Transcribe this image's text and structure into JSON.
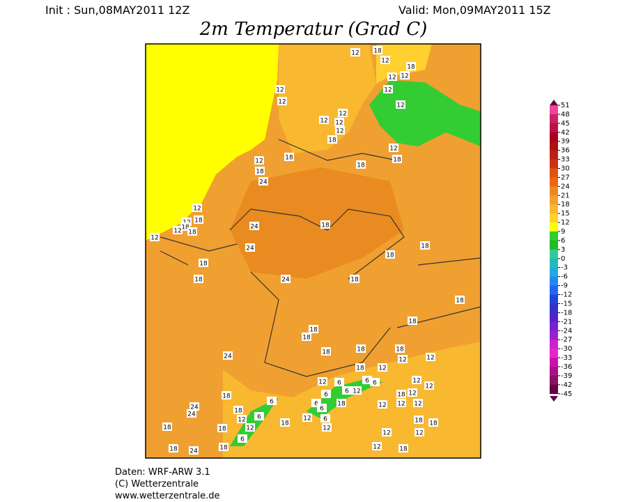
{
  "header": {
    "init": "Init : Sun,08MAY2011 12Z",
    "valid": "Valid: Mon,09MAY2011 15Z",
    "title": "2m Temperatur (Grad C)"
  },
  "colorbar": {
    "ticks": [
      51,
      48,
      45,
      42,
      39,
      36,
      33,
      30,
      27,
      24,
      21,
      18,
      15,
      12,
      9,
      6,
      3,
      0,
      -3,
      -6,
      -9,
      -12,
      -15,
      -18,
      -21,
      -24,
      -27,
      -30,
      -33,
      -36,
      -39,
      -42,
      -45
    ],
    "colors": [
      "#ee4499",
      "#cc2266",
      "#bb1144",
      "#aa0022",
      "#aa1111",
      "#bb2211",
      "#cc3311",
      "#dd5511",
      "#ee6611",
      "#ee8822",
      "#f0a030",
      "#f8b830",
      "#ffd030",
      "#ffff00",
      "#33cc33",
      "#22bb22",
      "#33cc99",
      "#22bbbb",
      "#22aadd",
      "#2288ee",
      "#2266ee",
      "#2244dd",
      "#3333cc",
      "#5522cc",
      "#7722cc",
      "#9922cc",
      "#cc22cc",
      "#ee22cc",
      "#cc11aa",
      "#aa1188",
      "#881166",
      "#660044"
    ]
  },
  "map": {
    "labels": [
      12,
      12,
      12,
      18,
      12,
      18,
      12,
      12,
      12,
      12,
      12,
      12,
      12,
      12,
      18,
      12,
      18,
      18,
      18,
      12,
      18,
      24,
      12,
      18,
      12,
      18,
      12,
      18,
      12,
      24,
      18,
      24,
      18,
      18,
      24,
      18,
      18,
      18,
      18,
      18,
      18,
      18,
      18,
      18,
      18,
      12,
      12,
      12,
      18,
      24,
      18,
      12,
      6,
      6,
      6,
      12,
      12,
      6,
      12,
      6,
      6,
      18,
      18,
      12,
      12,
      12,
      12,
      6,
      6,
      18,
      12,
      12,
      18,
      12,
      6,
      6,
      18,
      18,
      12,
      12,
      24,
      24,
      18,
      18,
      18,
      24,
      18,
      6,
      18,
      12,
      12
    ]
  },
  "footer": {
    "lines": [
      "Daten: WRF-ARW 3.1",
      "(C) Wetterzentrale",
      "www.wetterzentrale.de"
    ]
  }
}
